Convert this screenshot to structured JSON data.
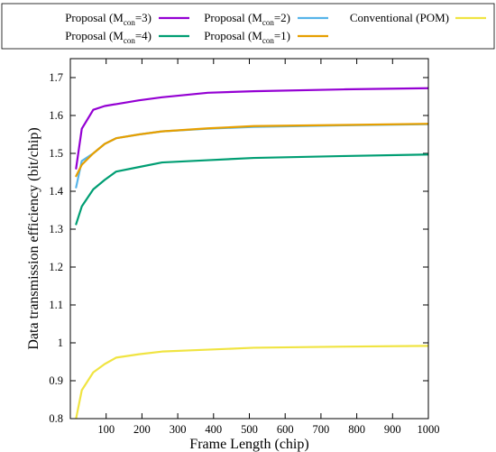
{
  "chart_data": {
    "type": "line",
    "xlabel": "Frame Length (chip)",
    "ylabel": "Data transmission efficiency (bit/chip)",
    "xlim": [
      0,
      1000
    ],
    "ylim": [
      0.8,
      1.75
    ],
    "x_ticks": [
      100,
      200,
      300,
      400,
      500,
      600,
      700,
      800,
      900,
      1000
    ],
    "y_ticks": [
      0.8,
      0.9,
      1,
      1.1,
      1.2,
      1.3,
      1.4,
      1.5,
      1.6,
      1.7
    ],
    "x_tick_labels": [
      "100",
      "200",
      "300",
      "400",
      "500",
      "600",
      "700",
      "800",
      "900",
      "1000"
    ],
    "y_tick_labels": [
      "0.8",
      "0.9",
      "1",
      "1.1",
      "1.2",
      "1.3",
      "1.4",
      "1.5",
      "1.6",
      "1.7"
    ],
    "grid": false,
    "legend": {
      "placement": "top (outside, boxed, 3 columns)"
    },
    "series": [
      {
        "name": "Proposal (M",
        "name_subscript": "con",
        "name_suffix": "=3)",
        "color": "#9400d3",
        "x": [
          16,
          32,
          64,
          96,
          128,
          192,
          256,
          384,
          512,
          768,
          1000
        ],
        "y": [
          1.46,
          1.565,
          1.615,
          1.625,
          1.63,
          1.64,
          1.648,
          1.66,
          1.664,
          1.669,
          1.672
        ]
      },
      {
        "name": "Proposal (M",
        "name_subscript": "con",
        "name_suffix": "=2)",
        "color": "#56b4e9",
        "x": [
          16,
          32,
          64,
          96,
          128,
          192,
          256,
          384,
          512,
          768,
          1000
        ],
        "y": [
          1.41,
          1.48,
          1.5,
          1.525,
          1.54,
          1.55,
          1.558,
          1.565,
          1.57,
          1.574,
          1.577
        ]
      },
      {
        "name": "Conventional (POM)",
        "color": "#f0e442",
        "x": [
          16,
          32,
          64,
          96,
          128,
          192,
          256,
          384,
          512,
          768,
          1000
        ],
        "y": [
          0.8,
          0.875,
          0.922,
          0.944,
          0.961,
          0.97,
          0.977,
          0.982,
          0.987,
          0.99,
          0.992
        ]
      },
      {
        "name": "Proposal (M",
        "name_subscript": "con",
        "name_suffix": "=4)",
        "color": "#009e73",
        "x": [
          16,
          32,
          64,
          96,
          128,
          192,
          256,
          384,
          512,
          768,
          1000
        ],
        "y": [
          1.313,
          1.36,
          1.405,
          1.43,
          1.452,
          1.464,
          1.476,
          1.482,
          1.488,
          1.493,
          1.497
        ]
      },
      {
        "name": "Proposal (M",
        "name_subscript": "con",
        "name_suffix": "=1)",
        "color": "#e69f00",
        "x": [
          16,
          32,
          64,
          96,
          128,
          192,
          256,
          384,
          512,
          768,
          1000
        ],
        "y": [
          1.44,
          1.47,
          1.5,
          1.525,
          1.54,
          1.55,
          1.558,
          1.566,
          1.572,
          1.575,
          1.578
        ]
      }
    ]
  }
}
